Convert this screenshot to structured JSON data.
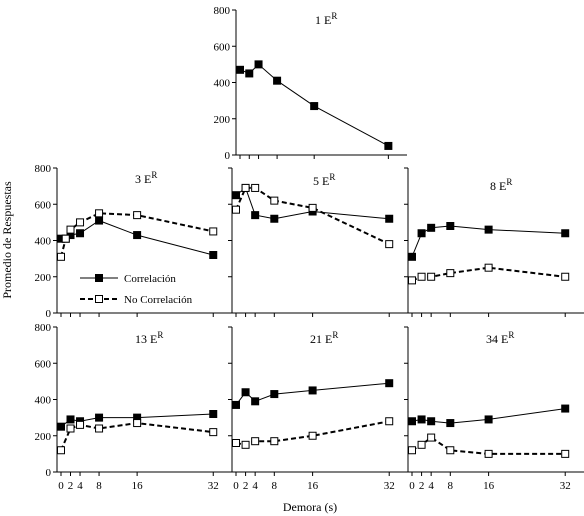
{
  "chart_data": {
    "type": "line",
    "xlabel": "Demora (s)",
    "ylabel": "Promedio de Respuestas",
    "x_ticks": [
      0,
      2,
      4,
      8,
      16,
      32
    ],
    "x_tick_labels": [
      "0",
      "2",
      "4",
      "8",
      "16",
      "32"
    ],
    "xlim": [
      0,
      33
    ],
    "ylim": [
      0,
      800
    ],
    "y_ticks": [
      0,
      200,
      400,
      600,
      800
    ],
    "legend": {
      "placement": "inside panel 3 E^R, lower-left",
      "entries": [
        "Correlación",
        "No Correlación"
      ]
    },
    "panels": [
      {
        "label": "1 E",
        "label_sup": "R",
        "series": [
          {
            "name": "Correlación",
            "x": [
              0,
              2,
              4,
              8,
              16,
              32
            ],
            "values": [
              470,
              450,
              500,
              410,
              270,
              50
            ]
          }
        ]
      },
      {
        "label": "3 E",
        "label_sup": "R",
        "series": [
          {
            "name": "Correlación",
            "x": [
              0,
              1,
              2,
              4,
              8,
              16,
              32
            ],
            "values": [
              410,
              410,
              430,
              440,
              510,
              430,
              320
            ]
          },
          {
            "name": "No Correlación",
            "x": [
              0,
              1,
              2,
              4,
              8,
              16,
              32
            ],
            "values": [
              310,
              410,
              460,
              500,
              550,
              540,
              450
            ]
          }
        ]
      },
      {
        "label": "5 E",
        "label_sup": "R",
        "series": [
          {
            "name": "Correlación",
            "x": [
              0,
              2,
              4,
              8,
              16,
              32
            ],
            "values": [
              650,
              690,
              540,
              520,
              560,
              520
            ]
          },
          {
            "name": "No Correlación",
            "x": [
              0,
              2,
              4,
              8,
              16,
              32
            ],
            "values": [
              570,
              690,
              690,
              620,
              580,
              380
            ]
          }
        ]
      },
      {
        "label": "8 E",
        "label_sup": "R",
        "series": [
          {
            "name": "Correlación",
            "x": [
              0,
              2,
              4,
              8,
              16,
              32
            ],
            "values": [
              310,
              440,
              470,
              480,
              460,
              440
            ]
          },
          {
            "name": "No Correlación",
            "x": [
              0,
              2,
              4,
              8,
              16,
              32
            ],
            "values": [
              180,
              200,
              200,
              220,
              250,
              200
            ]
          }
        ]
      },
      {
        "label": "13 E",
        "label_sup": "R",
        "series": [
          {
            "name": "Correlación",
            "x": [
              0,
              2,
              4,
              8,
              16,
              32
            ],
            "values": [
              250,
              290,
              280,
              300,
              300,
              320
            ]
          },
          {
            "name": "No Correlación",
            "x": [
              0,
              2,
              4,
              8,
              16,
              32
            ],
            "values": [
              120,
              240,
              260,
              240,
              270,
              220
            ]
          }
        ]
      },
      {
        "label": "21 E",
        "label_sup": "R",
        "series": [
          {
            "name": "Correlación",
            "x": [
              0,
              2,
              4,
              8,
              16,
              32
            ],
            "values": [
              370,
              440,
              390,
              430,
              450,
              490
            ]
          },
          {
            "name": "No Correlación",
            "x": [
              0,
              2,
              4,
              8,
              16,
              32
            ],
            "values": [
              160,
              150,
              170,
              170,
              200,
              280
            ]
          }
        ]
      },
      {
        "label": "34 E",
        "label_sup": "R",
        "series": [
          {
            "name": "Correlación",
            "x": [
              0,
              2,
              4,
              8,
              16,
              32
            ],
            "values": [
              280,
              290,
              280,
              270,
              290,
              350
            ]
          },
          {
            "name": "No Correlación",
            "x": [
              0,
              2,
              4,
              8,
              16,
              32
            ],
            "values": [
              120,
              150,
              190,
              120,
              100,
              100
            ]
          }
        ]
      }
    ]
  }
}
